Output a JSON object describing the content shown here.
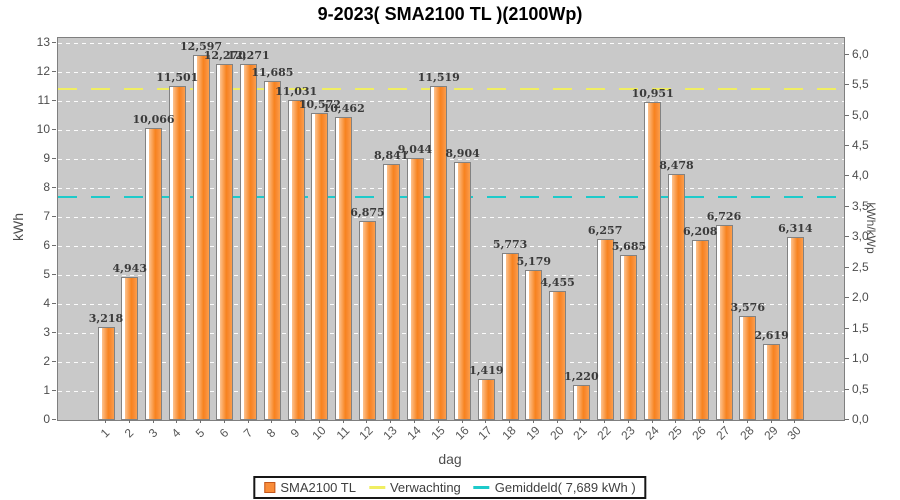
{
  "chart_data": {
    "type": "bar",
    "title": "9-2023( SMA2100 TL )(2100Wp)",
    "xlabel": "dag",
    "ylabel_left": "kWh",
    "ylabel_right": "kWh/kWp",
    "ylim_left": [
      0,
      13.17
    ],
    "ylim_right": [
      0,
      6.27
    ],
    "system_wp": 2100,
    "grid": {
      "show": true,
      "color": "#ffffff",
      "style": "dashed"
    },
    "plot_bg": "#c9c9c9",
    "legend_position": "bottom",
    "categories": [
      "1",
      "2",
      "3",
      "4",
      "5",
      "6",
      "7",
      "8",
      "9",
      "10",
      "11",
      "12",
      "13",
      "14",
      "15",
      "16",
      "17",
      "18",
      "19",
      "20",
      "21",
      "22",
      "23",
      "24",
      "25",
      "26",
      "27",
      "28",
      "29",
      "30"
    ],
    "series": [
      {
        "name": "SMA2100 TL",
        "values": [
          3.218,
          4.943,
          10.066,
          11.501,
          12.597,
          12.27,
          12.271,
          11.685,
          11.031,
          10.572,
          10.462,
          6.875,
          8.841,
          9.044,
          11.519,
          8.904,
          1.419,
          5.773,
          5.179,
          4.455,
          1.22,
          6.257,
          5.685,
          10.951,
          8.478,
          6.208,
          6.726,
          3.576,
          2.619,
          6.314
        ],
        "labels": [
          "3,218",
          "4,943",
          "10,066",
          "11,501",
          "12,597",
          "12,270",
          "12,271",
          "11,685",
          "11,031",
          "10,572",
          "10,462",
          "6,875",
          "8,841",
          "9,044",
          "11,519",
          "8,904",
          "1,419",
          "5,773",
          "5,179",
          "4,455",
          "1,220",
          "6,257",
          "5,685",
          "10,951",
          "8,478",
          "6,208",
          "6,726",
          "3,576",
          "2,619",
          "6,314"
        ]
      }
    ],
    "y_ticks_left": [
      "0",
      "1",
      "2",
      "3",
      "4",
      "5",
      "6",
      "7",
      "8",
      "9",
      "10",
      "11",
      "12",
      "13"
    ],
    "y_ticks_right": [
      "0,0",
      "0,5",
      "1,0",
      "1,5",
      "2,0",
      "2,5",
      "3,0",
      "3,5",
      "4,0",
      "4,5",
      "5,0",
      "5,5",
      "6,0"
    ],
    "reference_lines": [
      {
        "name": "Verwachting",
        "value": 11.43,
        "color": "#f0ee62"
      },
      {
        "name": "Gemiddeld",
        "value": 7.689,
        "color": "#1dcaca"
      }
    ],
    "legend": [
      {
        "label": "SMA2100 TL",
        "swatch": "box",
        "color": "#f98c38",
        "border": "#c3561c"
      },
      {
        "label": "Verwachting",
        "swatch": "line",
        "color": "#f0ee62"
      },
      {
        "label": "Gemiddeld( 7,689 kWh )",
        "swatch": "line",
        "color": "#1dcaca"
      }
    ],
    "bar_colors": {
      "body": "#f7831f",
      "light": "#fdc28e",
      "highlight": "#ffffff",
      "edge": "#828282"
    }
  }
}
